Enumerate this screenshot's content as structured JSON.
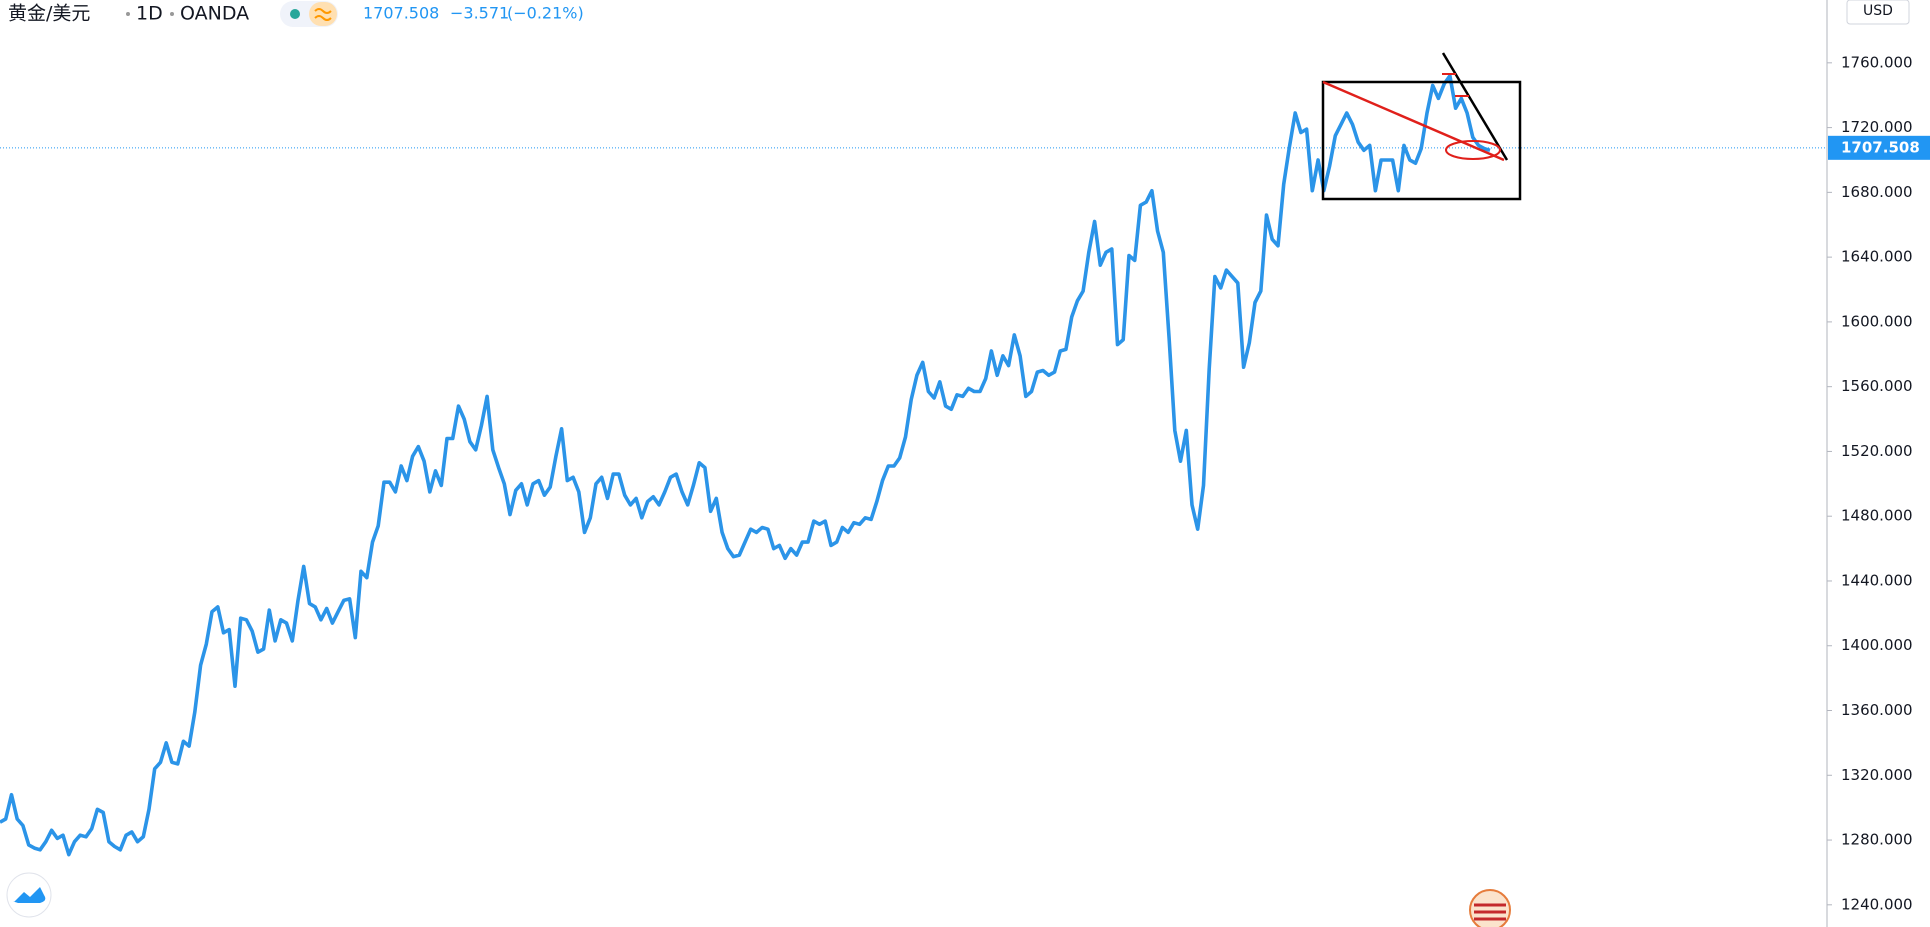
{
  "header": {
    "symbol": "黄金/美元",
    "interval": "1D",
    "exchange": "OANDA",
    "change": "−3.571",
    "change_pct": "(−0.21%)",
    "currency": "USD"
  },
  "chart_data": {
    "type": "line",
    "color": "#2b94e8",
    "last_price": 1707.508,
    "ylim": [
      1226.3,
      1798.8
    ],
    "yticks": [
      {
        "value": 1240,
        "label": "1240.000"
      },
      {
        "value": 1280,
        "label": "1280.000"
      },
      {
        "value": 1320,
        "label": "1320.000"
      },
      {
        "value": 1360,
        "label": "1360.000"
      },
      {
        "value": 1400,
        "label": "1400.000"
      },
      {
        "value": 1440,
        "label": "1440.000"
      },
      {
        "value": 1480,
        "label": "1480.000"
      },
      {
        "value": 1520,
        "label": "1520.000"
      },
      {
        "value": 1560,
        "label": "1560.000"
      },
      {
        "value": 1600,
        "label": "1600.000"
      },
      {
        "value": 1640,
        "label": "1640.000"
      },
      {
        "value": 1680,
        "label": "1680.000"
      },
      {
        "value": 1720,
        "label": "1720.000"
      },
      {
        "value": 1760,
        "label": "1760.000"
      }
    ],
    "values": [
      1291,
      1293,
      1308,
      1293,
      1289,
      1277,
      1275,
      1274,
      1279,
      1286,
      1281,
      1283,
      1271,
      1279,
      1283,
      1282,
      1287,
      1299,
      1297,
      1279,
      1276,
      1274,
      1283,
      1285,
      1279,
      1282,
      1299,
      1324,
      1328,
      1340,
      1328,
      1327,
      1341,
      1338,
      1359,
      1388,
      1401,
      1421,
      1424,
      1408,
      1410,
      1375,
      1417,
      1416,
      1409,
      1396,
      1398,
      1422,
      1403,
      1416,
      1414,
      1403,
      1428,
      1449,
      1426,
      1424,
      1416,
      1423,
      1414,
      1421,
      1428,
      1429,
      1405,
      1446,
      1442,
      1464,
      1474,
      1501,
      1501,
      1495,
      1511,
      1502,
      1517,
      1523,
      1514,
      1495,
      1508,
      1499,
      1528,
      1528,
      1548,
      1540,
      1526,
      1521,
      1536,
      1554,
      1521,
      1510,
      1500,
      1481,
      1496,
      1500,
      1487,
      1500,
      1502,
      1493,
      1498,
      1517,
      1534,
      1502,
      1504,
      1495,
      1470,
      1479,
      1500,
      1504,
      1491,
      1506,
      1506,
      1493,
      1487,
      1491,
      1479,
      1489,
      1492,
      1487,
      1495,
      1504,
      1506,
      1495,
      1487,
      1499,
      1513,
      1510,
      1483,
      1491,
      1470,
      1460,
      1455,
      1456,
      1464,
      1472,
      1470,
      1473,
      1472,
      1460,
      1462,
      1454,
      1460,
      1456,
      1464,
      1464,
      1477,
      1475,
      1477,
      1462,
      1464,
      1473,
      1470,
      1476,
      1475,
      1479,
      1478,
      1489,
      1502,
      1511,
      1511,
      1516,
      1529,
      1552,
      1567,
      1575,
      1557,
      1553,
      1563,
      1548,
      1546,
      1555,
      1554,
      1559,
      1557,
      1557,
      1565,
      1582,
      1567,
      1579,
      1573,
      1592,
      1579,
      1554,
      1557,
      1569,
      1570,
      1567,
      1569,
      1582,
      1583,
      1603,
      1613,
      1619,
      1643,
      1662,
      1635,
      1643,
      1645,
      1586,
      1589,
      1641,
      1638,
      1672,
      1674,
      1681,
      1656,
      1643,
      1590,
      1533,
      1514,
      1533,
      1487,
      1472,
      1499,
      1571,
      1628,
      1621,
      1632,
      1628,
      1624,
      1572,
      1587,
      1612,
      1619,
      1666,
      1651,
      1647,
      1685,
      1708,
      1729,
      1717,
      1719,
      1681,
      1700,
      1681,
      1696,
      1715,
      1722,
      1729,
      1722,
      1711,
      1706,
      1709,
      1681,
      1700,
      1700,
      1700,
      1681,
      1709,
      1700,
      1698,
      1707,
      1729,
      1746,
      1738,
      1747,
      1752,
      1732,
      1738,
      1729,
      1714,
      1709,
      1707,
      1706
    ]
  }
}
